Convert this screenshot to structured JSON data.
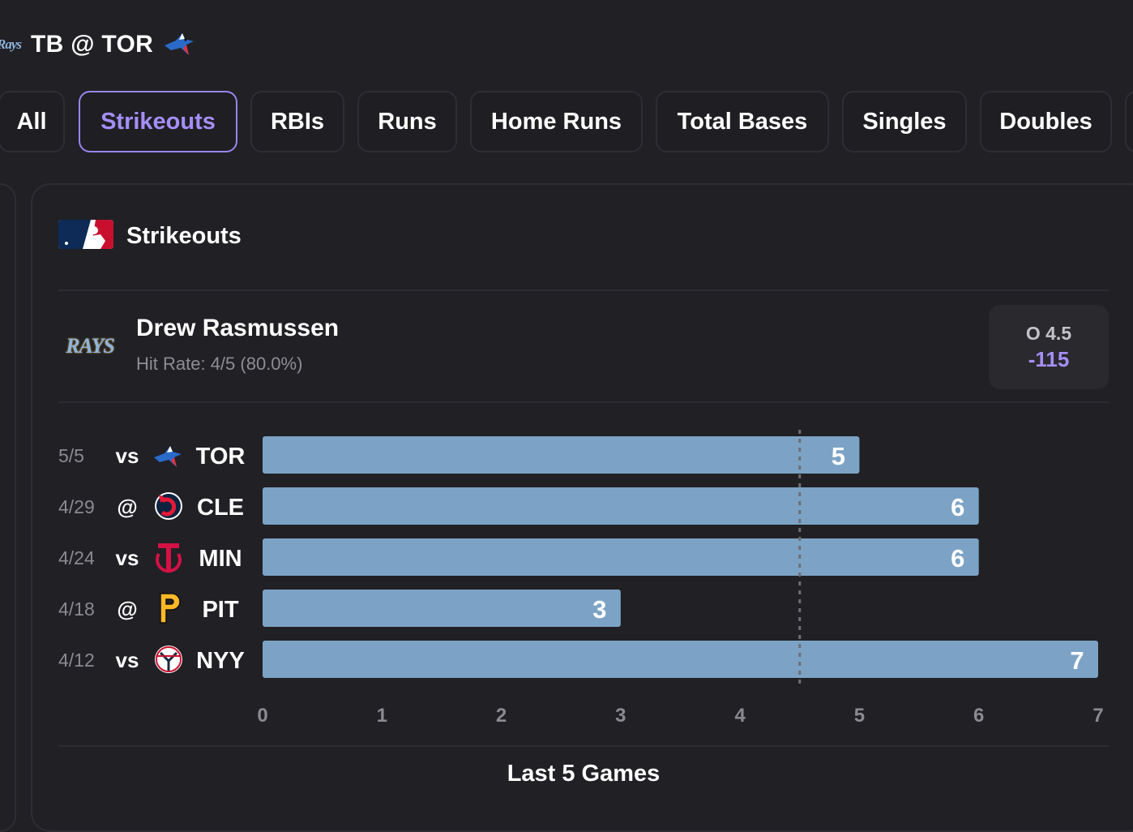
{
  "matchup": {
    "away_logo_text": "Rays",
    "title": "TB @ TOR",
    "home_logo_icon": "blue-jays-logo-icon"
  },
  "tabs": [
    {
      "label": "All",
      "active": false
    },
    {
      "label": "Strikeouts",
      "active": true
    },
    {
      "label": "RBIs",
      "active": false
    },
    {
      "label": "Runs",
      "active": false
    },
    {
      "label": "Home Runs",
      "active": false
    },
    {
      "label": "Total Bases",
      "active": false
    },
    {
      "label": "Singles",
      "active": false
    },
    {
      "label": "Doubles",
      "active": false
    }
  ],
  "card": {
    "league_icon": "mlb-logo-icon",
    "title": "Strikeouts",
    "player": {
      "team_logo_text": "RAYS",
      "name": "Drew Rasmussen",
      "hit_rate": "Hit Rate: 4/5 (80.0%)"
    },
    "odds": {
      "line": "O 4.5",
      "price": "-115"
    },
    "caption": "Last 5 Games"
  },
  "colors": {
    "background": "#212025",
    "accent": "#a68ef8",
    "bar": "#7ca3c5",
    "muted_text": "#8b8a91"
  },
  "chart_data": {
    "type": "bar",
    "orientation": "horizontal",
    "title": "Last 5 Games",
    "rows": [
      {
        "date": "5/5",
        "home_away": "vs",
        "opponent": "TOR",
        "opponent_icon": "blue-jays-logo-icon",
        "value": 5
      },
      {
        "date": "4/29",
        "home_away": "@",
        "opponent": "CLE",
        "opponent_icon": "guardians-logo-icon",
        "value": 6
      },
      {
        "date": "4/24",
        "home_away": "vs",
        "opponent": "MIN",
        "opponent_icon": "twins-logo-icon",
        "value": 6
      },
      {
        "date": "4/18",
        "home_away": "@",
        "opponent": "PIT",
        "opponent_icon": "pirates-logo-icon",
        "value": 3
      },
      {
        "date": "4/12",
        "home_away": "vs",
        "opponent": "NYY",
        "opponent_icon": "yankees-logo-icon",
        "value": 7
      }
    ],
    "xlim": [
      0,
      7
    ],
    "ticks": [
      "0",
      "1",
      "2",
      "3",
      "4",
      "5",
      "6",
      "7"
    ],
    "reference_line": 4.5,
    "grid": false
  }
}
